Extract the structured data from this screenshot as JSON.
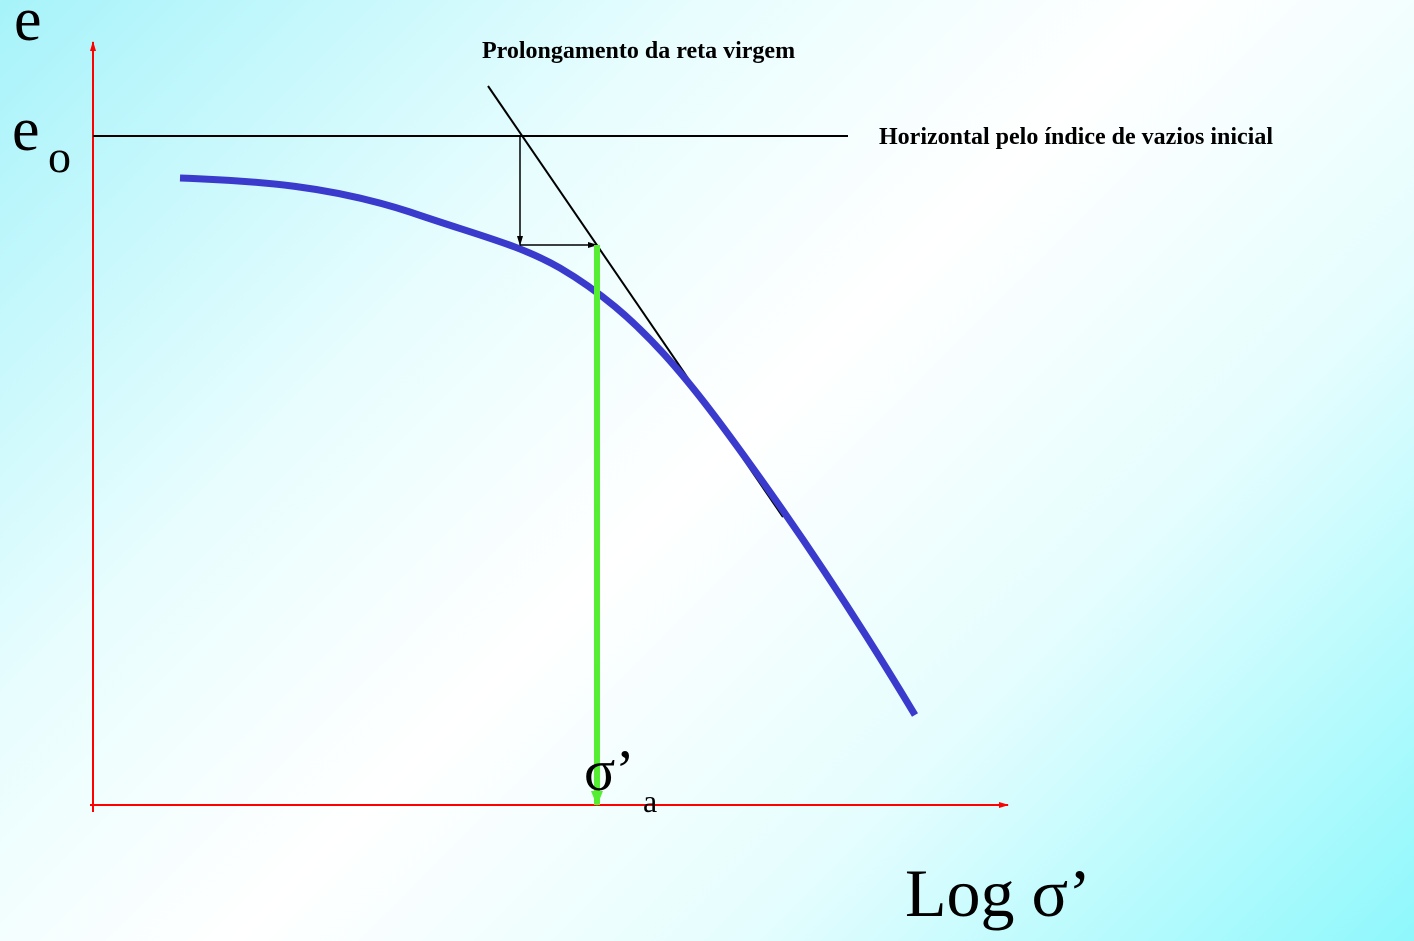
{
  "y_axis_label": "e",
  "initial_void_ratio": {
    "symbol": "e",
    "subscript": "o"
  },
  "annotations": {
    "virgin_line": "Prolongamento da reta virgem",
    "horizontal": "Horizontal pelo índice de vazios inicial"
  },
  "preconsolidation": {
    "symbol": "σ’",
    "subscript": "a"
  },
  "x_axis_label": "Log σ’"
}
